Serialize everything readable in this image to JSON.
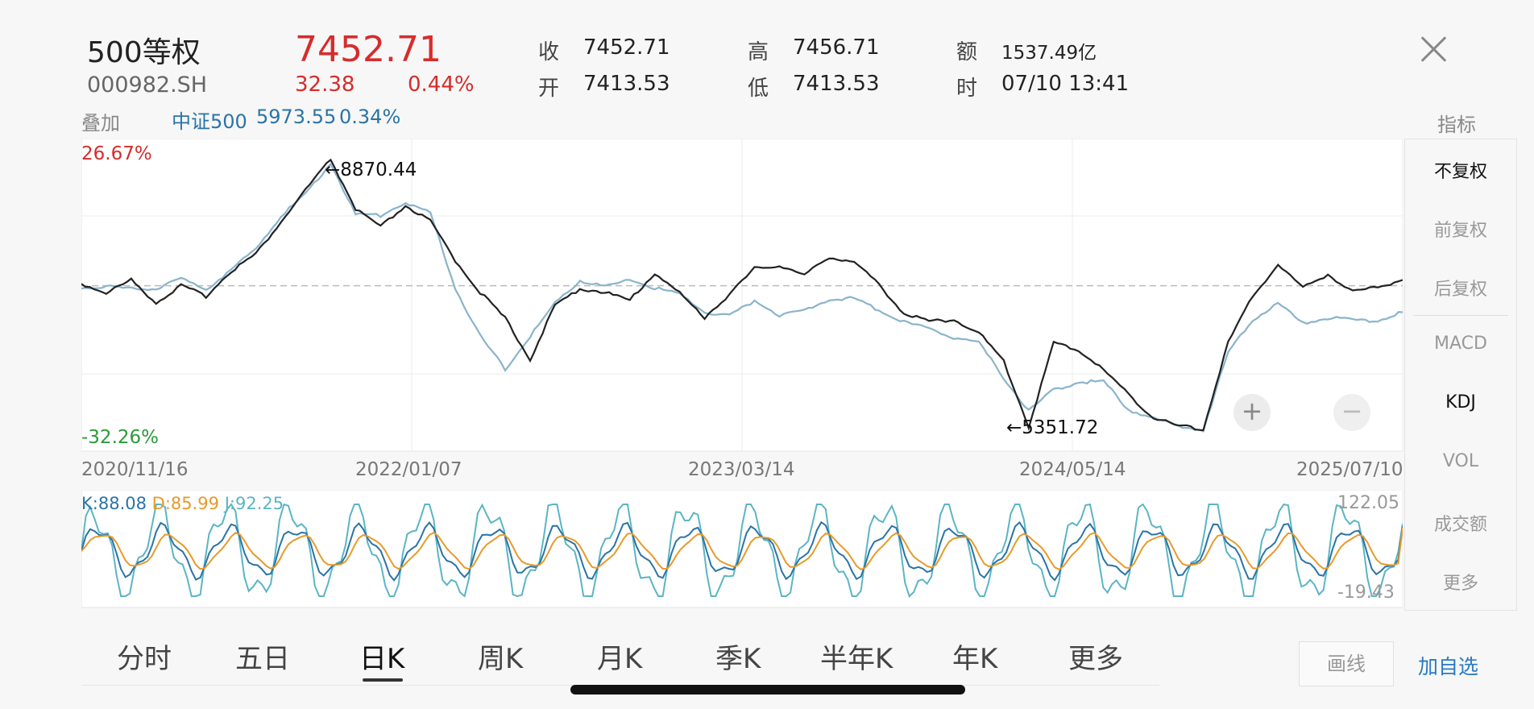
{
  "header": {
    "name": "500等权",
    "code": "000982.SH",
    "price": "7452.71",
    "change": "32.38",
    "change_pct": "0.44%",
    "stats": {
      "close_label": "收",
      "close": "7452.71",
      "open_label": "开",
      "open": "7413.53",
      "high_label": "高",
      "high": "7456.71",
      "low_label": "低",
      "low": "7413.53",
      "amount_label": "额",
      "amount": "1537.49亿",
      "time_label": "时",
      "time": "07/10 13:41"
    }
  },
  "overlay": {
    "label": "叠加",
    "name": "中证500",
    "value": "5973.55",
    "pct": "0.34%"
  },
  "side_panel": {
    "title": "指标",
    "items": [
      "不复权",
      "前复权",
      "后复权",
      "MACD",
      "KDJ",
      "VOL",
      "成交额",
      "更多"
    ],
    "active": [
      "不复权",
      "KDJ"
    ]
  },
  "chart_data": [
    {
      "type": "line",
      "y_axis_top_label": "26.67%",
      "y_axis_bottom_label": "-32.26%",
      "x_tick_labels": [
        "2020/11/16",
        "2022/01/07",
        "2023/03/14",
        "2024/05/14",
        "2025/07/10"
      ],
      "annotations": [
        "←8870.44",
        "←5351.72"
      ],
      "ylim_pct": [
        -32.26,
        26.67
      ],
      "grid": true,
      "series": [
        {
          "name": "500等权",
          "color": "#222222",
          "values_pct": [
            0.4,
            -1.5,
            1.2,
            -3.6,
            0.0,
            -2.2,
            3.1,
            6.7,
            13.4,
            20.3,
            26.67,
            16.2,
            12.4,
            16.9,
            13.6,
            5.3,
            -1.4,
            -6.9,
            -15.6,
            -4.2,
            -0.6,
            -1.4,
            -3.1,
            2.7,
            -1.6,
            -6.7,
            -1.8,
            3.6,
            4.3,
            2.2,
            6.1,
            5.0,
            0.2,
            -5.9,
            -7.5,
            -7.2,
            -9.9,
            -16.0,
            -29.8,
            -12.1,
            -13.6,
            -17.8,
            -22.9,
            -28.0,
            -29.6,
            -30.4,
            -12.0,
            -2.1,
            4.5,
            -0.4,
            2.4,
            -1.3,
            -0.2,
            1.2
          ]
        },
        {
          "name": "中证500",
          "color": "#8ab4cc",
          "values_pct": [
            -0.4,
            -0.2,
            -0.6,
            -0.7,
            1.4,
            -0.7,
            3.2,
            7.8,
            14.7,
            19.3,
            26.0,
            15.0,
            14.8,
            17.6,
            15.4,
            -0.5,
            -10.7,
            -17.6,
            -10.7,
            -3.7,
            1.1,
            -0.3,
            1.3,
            -0.5,
            -1.8,
            -5.5,
            -6.4,
            -3.1,
            -6.2,
            -5.2,
            -2.8,
            -2.7,
            -5.1,
            -7.7,
            -9.1,
            -10.9,
            -12.0,
            -19.5,
            -26.4,
            -22.1,
            -20.4,
            -20.2,
            -26.2,
            -28.0,
            -29.6,
            -30.5,
            -14.0,
            -7.2,
            -3.8,
            -8.0,
            -6.8,
            -7.3,
            -7.4,
            -5.6
          ]
        }
      ]
    },
    {
      "type": "line",
      "name": "KDJ",
      "max_label": "122.05",
      "min_label": "-19.43",
      "ylim": [
        -19.43,
        122.05
      ],
      "series": [
        {
          "name": "K",
          "label": "K:88.08",
          "color": "#2a74a6",
          "values": [
            88.08
          ]
        },
        {
          "name": "D",
          "label": "D:85.99",
          "color": "#e89a2a",
          "values": [
            85.99
          ]
        },
        {
          "name": "J",
          "label": "J:92.25",
          "color": "#5bb5c4",
          "values": [
            92.25
          ]
        }
      ]
    }
  ],
  "tabs": {
    "items": [
      "分时",
      "五日",
      "日K",
      "周K",
      "月K",
      "季K",
      "半年K",
      "年K",
      "更多"
    ],
    "active": "日K"
  },
  "bottom_buttons": {
    "draw": "画线",
    "add": "加自选"
  },
  "colors": {
    "up": "#d62c2c",
    "down": "#2a9a3a",
    "accent": "#2a7ac4"
  }
}
